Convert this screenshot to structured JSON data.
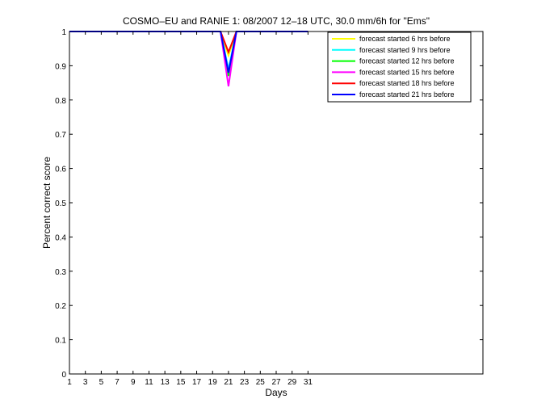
{
  "chart_data": {
    "type": "line",
    "title": "COSMO–EU and RANIE 1: 08/2007 12–18 UTC, 30.0 mm/6h for \"Ems\"",
    "xlabel": "Days",
    "ylabel": "Percent correct score",
    "xlim": [
      1,
      53
    ],
    "ylim": [
      0,
      1
    ],
    "xticks": [
      "1",
      "3",
      "5",
      "7",
      "9",
      "11",
      "13",
      "15",
      "17",
      "19",
      "21",
      "23",
      "25",
      "27",
      "29",
      "31"
    ],
    "yticks": [
      "0",
      "0.1",
      "0.2",
      "0.3",
      "0.4",
      "0.5",
      "0.6",
      "0.7",
      "0.8",
      "0.9",
      "1"
    ],
    "grid": false,
    "legend_position": "top-right",
    "x": [
      1,
      2,
      3,
      4,
      5,
      6,
      7,
      8,
      9,
      10,
      11,
      12,
      13,
      14,
      15,
      16,
      17,
      18,
      19,
      20,
      21,
      22,
      23,
      24,
      25,
      26,
      27,
      28,
      29,
      30,
      31
    ],
    "series": [
      {
        "name": "forecast started 6 hrs before",
        "color": "#ffff00",
        "values": [
          1,
          1,
          1,
          1,
          1,
          1,
          1,
          1,
          1,
          1,
          1,
          1,
          1,
          1,
          1,
          1,
          1,
          1,
          1,
          1,
          0.93,
          1,
          1,
          1,
          1,
          1,
          1,
          1,
          1,
          1,
          1
        ]
      },
      {
        "name": "forecast started 9 hrs before",
        "color": "#00ffff",
        "values": [
          1,
          1,
          1,
          1,
          1,
          1,
          1,
          1,
          1,
          1,
          1,
          1,
          1,
          1,
          1,
          1,
          1,
          1,
          1,
          1,
          0.89,
          1,
          1,
          1,
          1,
          1,
          1,
          1,
          1,
          1,
          1
        ]
      },
      {
        "name": "forecast started 12 hrs before",
        "color": "#00ff00",
        "values": [
          1,
          1,
          1,
          1,
          1,
          1,
          1,
          1,
          1,
          1,
          1,
          1,
          1,
          1,
          1,
          1,
          1,
          1,
          1,
          1,
          0.87,
          1,
          1,
          1,
          1,
          1,
          1,
          1,
          1,
          1,
          1
        ]
      },
      {
        "name": "forecast started 15 hrs before",
        "color": "#ff00ff",
        "values": [
          1,
          1,
          1,
          1,
          1,
          1,
          1,
          1,
          1,
          1,
          1,
          1,
          1,
          1,
          1,
          1,
          1,
          1,
          1,
          1,
          0.84,
          1,
          1,
          1,
          1,
          1,
          1,
          1,
          1,
          1,
          1
        ]
      },
      {
        "name": "forecast started 18 hrs before",
        "color": "#ff0000",
        "values": [
          1,
          1,
          1,
          1,
          1,
          1,
          1,
          1,
          1,
          1,
          1,
          1,
          1,
          1,
          1,
          1,
          1,
          1,
          1,
          1,
          0.94,
          1,
          1,
          1,
          1,
          1,
          1,
          1,
          1,
          1,
          1
        ]
      },
      {
        "name": "forecast started 21 hrs before",
        "color": "#0000ff",
        "values": [
          1,
          1,
          1,
          1,
          1,
          1,
          1,
          1,
          1,
          1,
          1,
          1,
          1,
          1,
          1,
          1,
          1,
          1,
          1,
          1,
          0.88,
          1,
          1,
          1,
          1,
          1,
          1,
          1,
          1,
          1,
          1
        ]
      }
    ]
  }
}
